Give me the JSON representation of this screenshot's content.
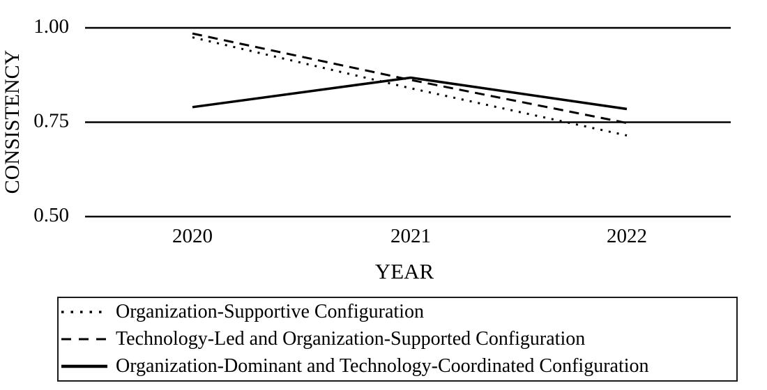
{
  "figure": {
    "background_color": "#ffffff",
    "ink_color": "#000000"
  },
  "chart_data": {
    "type": "line",
    "title": "",
    "xlabel": "YEAR",
    "ylabel": "CONSISTENCY",
    "x_categories": [
      "2020",
      "2021",
      "2022"
    ],
    "y_ticks": [
      {
        "label": "1.00",
        "value": 1.0
      },
      {
        "label": "0.75",
        "value": 0.75
      },
      {
        "label": "0.50",
        "value": 0.5
      }
    ],
    "ylim": [
      0.5,
      1.0
    ],
    "grid": "horizontal-only",
    "legend_position": "bottom-boxed",
    "line_color": "#000000",
    "series": [
      {
        "name": "Organization-Supportive Configuration",
        "style": "dotted",
        "values": [
          0.975,
          0.84,
          0.715
        ]
      },
      {
        "name": "Technology-Led and Organization-Supported Configuration",
        "style": "dashed",
        "values": [
          0.985,
          0.862,
          0.748
        ]
      },
      {
        "name": "Organization-Dominant and Technology-Coordinated Configuration",
        "style": "solid",
        "values": [
          0.79,
          0.868,
          0.785
        ]
      }
    ]
  }
}
